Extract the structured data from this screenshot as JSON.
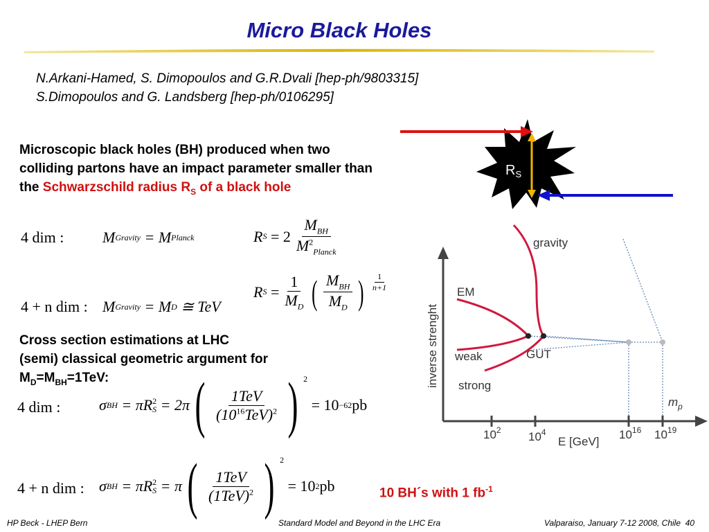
{
  "header": {
    "title": "Micro Black Holes"
  },
  "references": [
    "N.Arkani-Hamed, S. Dimopoulos and G.R.Dvali [hep-ph/9803315]",
    "S.Dimopoulos and G. Landsberg [hep-ph/0106295]"
  ],
  "intro": {
    "text": "Microscopic black holes (BH) produced when two colliding partons have an impact parameter smaller than the ",
    "highlight": "Schwarzschild radius R",
    "highlight_sub": "S",
    "tail": " of a black hole"
  },
  "eq_4dim": {
    "label": "4 dim :",
    "mass": [
      "M",
      "Gravity",
      "= M",
      "Planck"
    ],
    "radius": [
      "R",
      "S",
      "= 2",
      "M",
      "BH",
      "M",
      "2",
      "Planck"
    ]
  },
  "eq_4ndim": {
    "label": "4 + n dim :",
    "mass": [
      "M",
      "Gravity",
      "= M",
      "D",
      "≅ TeV"
    ],
    "radius": [
      "R",
      "S",
      "=",
      "1",
      "M",
      "D",
      "M",
      "BH",
      "M",
      "D",
      "1",
      "n+1"
    ]
  },
  "cross_section": {
    "lines": [
      "Cross section estimations at LHC",
      "(semi) classical geometric argument for"
    ],
    "condition": [
      "M",
      "D",
      "=M",
      "BH",
      "=1TeV:"
    ]
  },
  "xsec_4dim": {
    "label": "4 dim :",
    "parts": [
      "σ",
      "BH",
      "= πR",
      "2",
      "S",
      "= 2π",
      "1TeV",
      "(10",
      "16",
      "TeV)",
      "2",
      "2",
      "= 10",
      "−62",
      "pb"
    ]
  },
  "xsec_4ndim": {
    "label": "4 + n dim :",
    "parts": [
      "σ",
      "BH",
      "= πR",
      "2",
      "S",
      "= π",
      "1TeV",
      "(1TeV)",
      "2",
      "2",
      "= 10",
      "2",
      "pb"
    ]
  },
  "result": {
    "text": "10 BH´s with 1 fb",
    "sup": "-1"
  },
  "diagram": {
    "radius_label": [
      "R",
      "S"
    ],
    "curves": [
      "gravity",
      "EM",
      "weak",
      "GUT",
      "strong"
    ],
    "y_axis": "inverse strenght",
    "planck_label": [
      "m",
      "p"
    ],
    "x_ticks": [
      [
        "10",
        "2"
      ],
      [
        "10",
        "4"
      ],
      [
        "10",
        "16"
      ],
      [
        "10",
        "19"
      ]
    ],
    "x_axis": "E [GeV]"
  },
  "footer": {
    "left": "HP Beck - LHEP Bern",
    "center": "Standard Model and Beyond in the LHC Era",
    "right": "Valparaiso, January 7-12 2008, Chile",
    "page": "40"
  }
}
